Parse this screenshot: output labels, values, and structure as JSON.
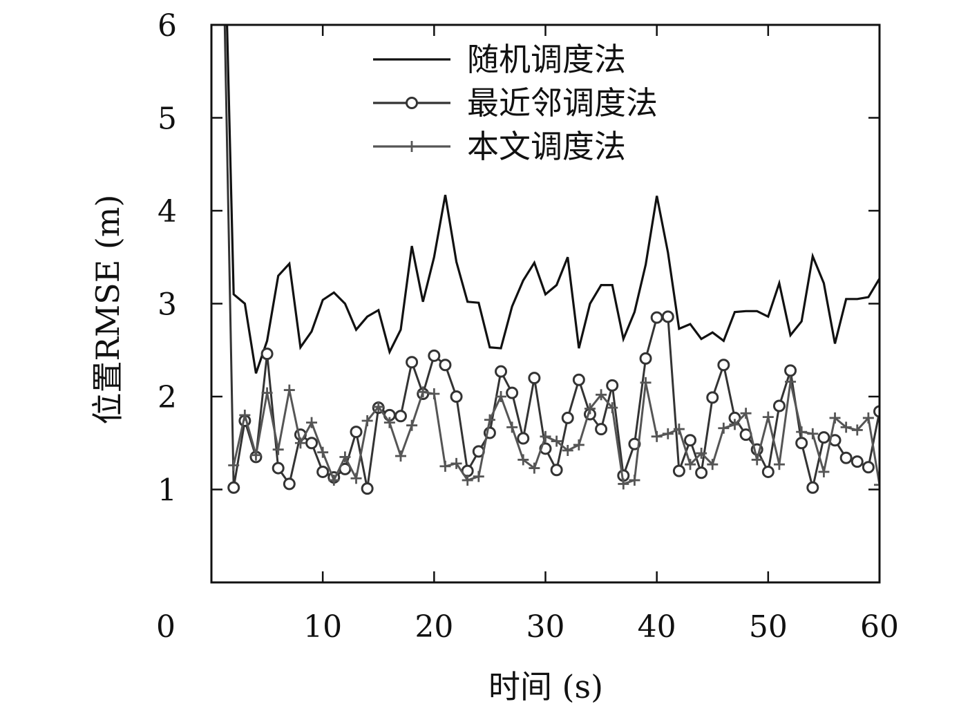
{
  "chart_data": {
    "type": "line",
    "title": "",
    "xlabel": "时间 (s)",
    "ylabel": "位置RMSE (m)",
    "xlim": [
      0,
      60
    ],
    "ylim": [
      0,
      6
    ],
    "x_ticks": [
      10,
      20,
      30,
      40,
      50,
      60
    ],
    "y_ticks": [
      1,
      2,
      3,
      4,
      5,
      6
    ],
    "origin_label": "0",
    "grid": false,
    "legend_position": "top-right",
    "series": [
      {
        "name": "随机调度法",
        "color": "#111111",
        "marker": "none",
        "x": [
          1.2,
          1.4,
          2,
          3,
          4,
          5,
          6,
          7,
          8,
          9,
          10,
          11,
          12,
          13,
          14,
          15,
          16,
          17,
          18,
          19,
          20,
          21,
          22,
          23,
          24,
          25,
          26,
          27,
          28,
          29,
          30,
          31,
          32,
          33,
          34,
          35,
          36,
          37,
          38,
          39,
          40,
          41,
          42,
          43,
          44,
          45,
          46,
          47,
          48,
          49,
          50,
          51,
          52,
          53,
          54,
          55,
          56,
          57,
          58,
          59,
          60
        ],
        "y": [
          6.0,
          6.0,
          3.1,
          3.0,
          2.25,
          2.6,
          3.3,
          3.43,
          2.53,
          2.7,
          3.04,
          3.12,
          3.0,
          2.72,
          2.86,
          2.93,
          2.48,
          2.72,
          3.62,
          3.02,
          3.5,
          4.17,
          3.45,
          3.02,
          3.01,
          2.53,
          2.52,
          2.97,
          3.25,
          3.44,
          3.1,
          3.2,
          3.5,
          2.52,
          3.0,
          3.2,
          3.2,
          2.62,
          2.91,
          3.42,
          4.16,
          3.55,
          2.73,
          2.78,
          2.62,
          2.69,
          2.6,
          2.91,
          2.92,
          2.92,
          2.86,
          3.22,
          2.66,
          2.81,
          3.51,
          3.22,
          2.57,
          3.05,
          3.05,
          3.07,
          3.27
        ]
      },
      {
        "name": "最近邻调度法",
        "color": "#333333",
        "marker": "circle",
        "x": [
          1.2,
          2,
          3,
          4,
          5,
          6,
          7,
          8,
          9,
          10,
          11,
          12,
          13,
          14,
          15,
          16,
          17,
          18,
          19,
          20,
          21,
          22,
          23,
          24,
          25,
          26,
          27,
          28,
          29,
          30,
          31,
          32,
          33,
          34,
          35,
          36,
          37,
          38,
          39,
          40,
          41,
          42,
          43,
          44,
          45,
          46,
          47,
          48,
          49,
          50,
          51,
          52,
          53,
          54,
          55,
          56,
          57,
          58,
          59,
          60
        ],
        "y": [
          6.0,
          1.02,
          1.74,
          1.35,
          2.46,
          1.23,
          1.06,
          1.59,
          1.5,
          1.19,
          1.13,
          1.22,
          1.62,
          1.01,
          1.88,
          1.8,
          1.79,
          2.37,
          2.03,
          2.44,
          2.34,
          2.0,
          1.2,
          1.41,
          1.61,
          2.27,
          2.04,
          1.55,
          2.2,
          1.44,
          1.21,
          1.77,
          2.18,
          1.81,
          1.65,
          2.12,
          1.15,
          1.49,
          2.41,
          2.85,
          2.86,
          1.2,
          1.53,
          1.18,
          1.99,
          2.34,
          1.77,
          1.59,
          1.43,
          1.19,
          1.9,
          2.28,
          1.5,
          1.02,
          1.56,
          1.53,
          1.34,
          1.3,
          1.24,
          1.84
        ]
      },
      {
        "name": "本文调度法",
        "color": "#555555",
        "marker": "plus",
        "x": [
          2,
          3,
          4,
          5,
          6,
          7,
          8,
          9,
          10,
          11,
          12,
          13,
          14,
          15,
          16,
          17,
          18,
          19,
          20,
          21,
          22,
          23,
          24,
          25,
          26,
          27,
          28,
          29,
          30,
          31,
          32,
          33,
          34,
          35,
          36,
          37,
          38,
          39,
          40,
          41,
          42,
          43,
          44,
          45,
          46,
          47,
          48,
          49,
          50,
          51,
          52,
          53,
          54,
          55,
          56,
          57,
          58,
          59,
          60
        ],
        "y": [
          1.26,
          1.8,
          1.37,
          2.04,
          1.43,
          2.07,
          1.5,
          1.72,
          1.4,
          1.1,
          1.35,
          1.12,
          1.74,
          1.89,
          1.72,
          1.36,
          1.69,
          2.05,
          2.03,
          1.25,
          1.28,
          1.1,
          1.14,
          1.75,
          2.0,
          1.67,
          1.32,
          1.23,
          1.57,
          1.52,
          1.42,
          1.48,
          1.87,
          2.02,
          1.88,
          1.06,
          1.1,
          2.15,
          1.57,
          1.6,
          1.65,
          1.27,
          1.39,
          1.27,
          1.66,
          1.7,
          1.82,
          1.32,
          1.78,
          1.27,
          2.16,
          1.62,
          1.6,
          1.19,
          1.77,
          1.67,
          1.64,
          1.77,
          1.05
        ]
      }
    ]
  }
}
